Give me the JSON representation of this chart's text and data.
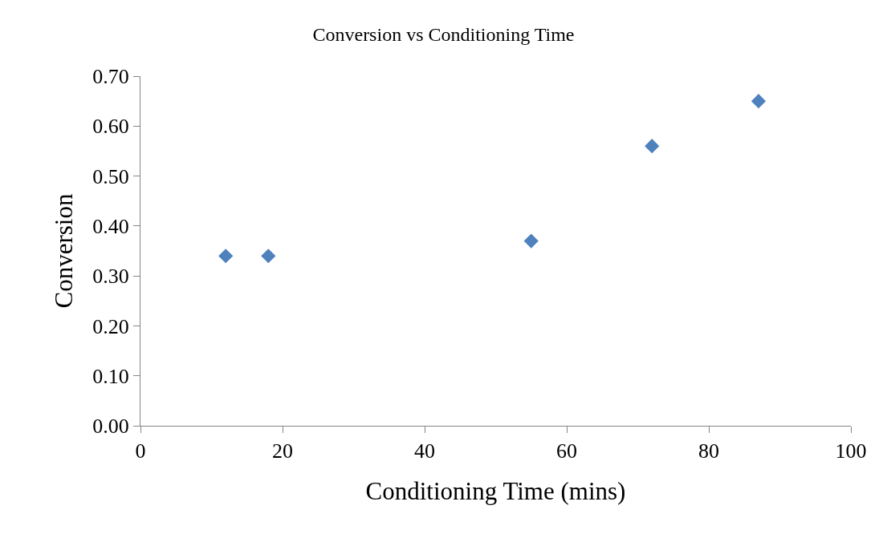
{
  "chart_data": {
    "type": "scatter",
    "title": "Conversion vs Conditioning Time",
    "xlabel": "Conditioning Time (mins)",
    "ylabel": "Conversion",
    "x": [
      12,
      18,
      55,
      72,
      87
    ],
    "series": [
      {
        "color": "#4f81bd",
        "values": [
          0.34,
          0.34,
          0.37,
          0.56,
          0.65
        ]
      }
    ],
    "xlim": [
      0,
      100
    ],
    "xticks": [
      0,
      20,
      40,
      60,
      80,
      100
    ],
    "ylim": [
      0,
      0.7
    ],
    "yticks": [
      {
        "value": 0,
        "label": "0.00"
      },
      {
        "value": 0.1,
        "label": "0.10"
      },
      {
        "value": 0.2,
        "label": "0.20"
      },
      {
        "value": 0.3,
        "label": "0.30"
      },
      {
        "value": 0.4,
        "label": "0.40"
      },
      {
        "value": 0.5,
        "label": "0.50"
      },
      {
        "value": 0.6,
        "label": "0.60"
      },
      {
        "value": 0.7,
        "label": "0.70"
      }
    ],
    "marker": "diamond",
    "legend": false
  }
}
